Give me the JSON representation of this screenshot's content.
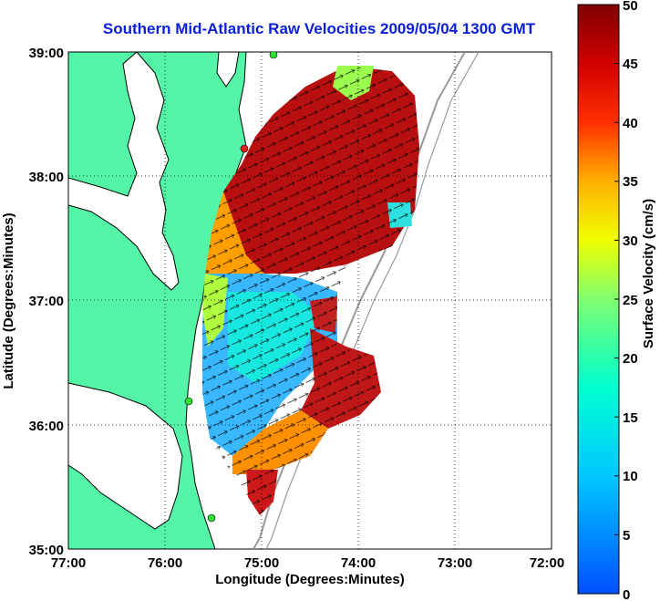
{
  "title": "Southern Mid-Atlantic Raw Velocities 2009/05/04 1300 GMT",
  "x_axis": {
    "label": "Longitude (Degrees:Minutes)",
    "ticks": [
      "77:00",
      "76:00",
      "75:00",
      "74:00",
      "73:00",
      "72:00"
    ]
  },
  "y_axis": {
    "label": "Latitude (Degrees:Minutes)",
    "ticks": [
      "39:00",
      "38:00",
      "37:00",
      "36:00",
      "35:00"
    ]
  },
  "colorbar": {
    "label": "Surface Velocity (cm/s)",
    "ticks": [
      "50",
      "45",
      "40",
      "35",
      "30",
      "25",
      "20",
      "15",
      "10",
      "5",
      "0"
    ],
    "min": 0,
    "max": 50
  },
  "colors": {
    "land": "#55f5a8",
    "water": "#ffffff",
    "title": "#0a1fd6",
    "coast": "#000000",
    "bathymetry": "#9a9a9a"
  },
  "map": {
    "lon_range": [
      -77,
      -72
    ],
    "lat_range": [
      35,
      39
    ],
    "grid": "dotted"
  }
}
